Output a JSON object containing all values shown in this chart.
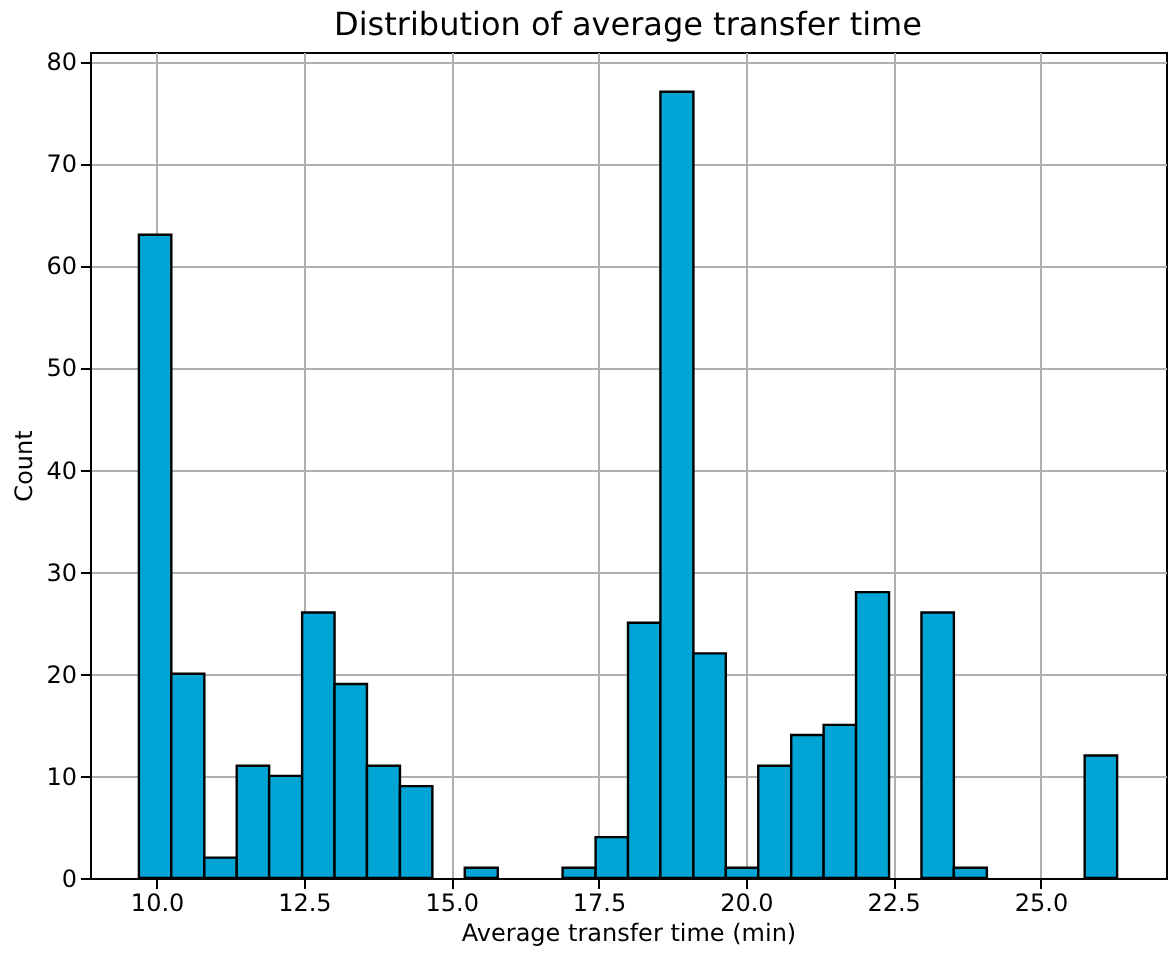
{
  "chart_data": {
    "type": "histogram",
    "title": "Distribution of average transfer time",
    "xlabel": "Average transfer time (min)",
    "ylabel": "Count",
    "bins": [
      9.7,
      10.25,
      10.81,
      11.36,
      11.91,
      12.47,
      13.02,
      13.57,
      14.13,
      14.68,
      15.23,
      15.79,
      16.89,
      17.45,
      18.0,
      18.55,
      19.11,
      19.66,
      20.21,
      20.77,
      21.32,
      21.87,
      22.43,
      22.98,
      23.53,
      24.09,
      25.75,
      26.3
    ],
    "values": [
      63,
      20,
      2,
      11,
      10,
      26,
      19,
      11,
      9,
      0,
      1,
      0,
      1,
      4,
      25,
      77,
      22,
      1,
      11,
      14,
      15,
      28,
      0,
      26,
      1,
      0,
      12
    ],
    "color": "#00a5d6",
    "xlim": [
      8.87,
      27.13
    ],
    "xticks": [
      {
        "value": 10,
        "label": "10.0"
      },
      12.5,
      {
        "value": 15,
        "label": "15.0"
      },
      17.5,
      {
        "value": 20,
        "label": "20.0"
      },
      22.5,
      {
        "value": 25,
        "label": "25.0"
      }
    ],
    "ylim": [
      0,
      80.9
    ],
    "yticks": [
      0,
      10,
      20,
      30,
      40,
      50,
      60,
      70,
      80
    ],
    "grid": true
  }
}
